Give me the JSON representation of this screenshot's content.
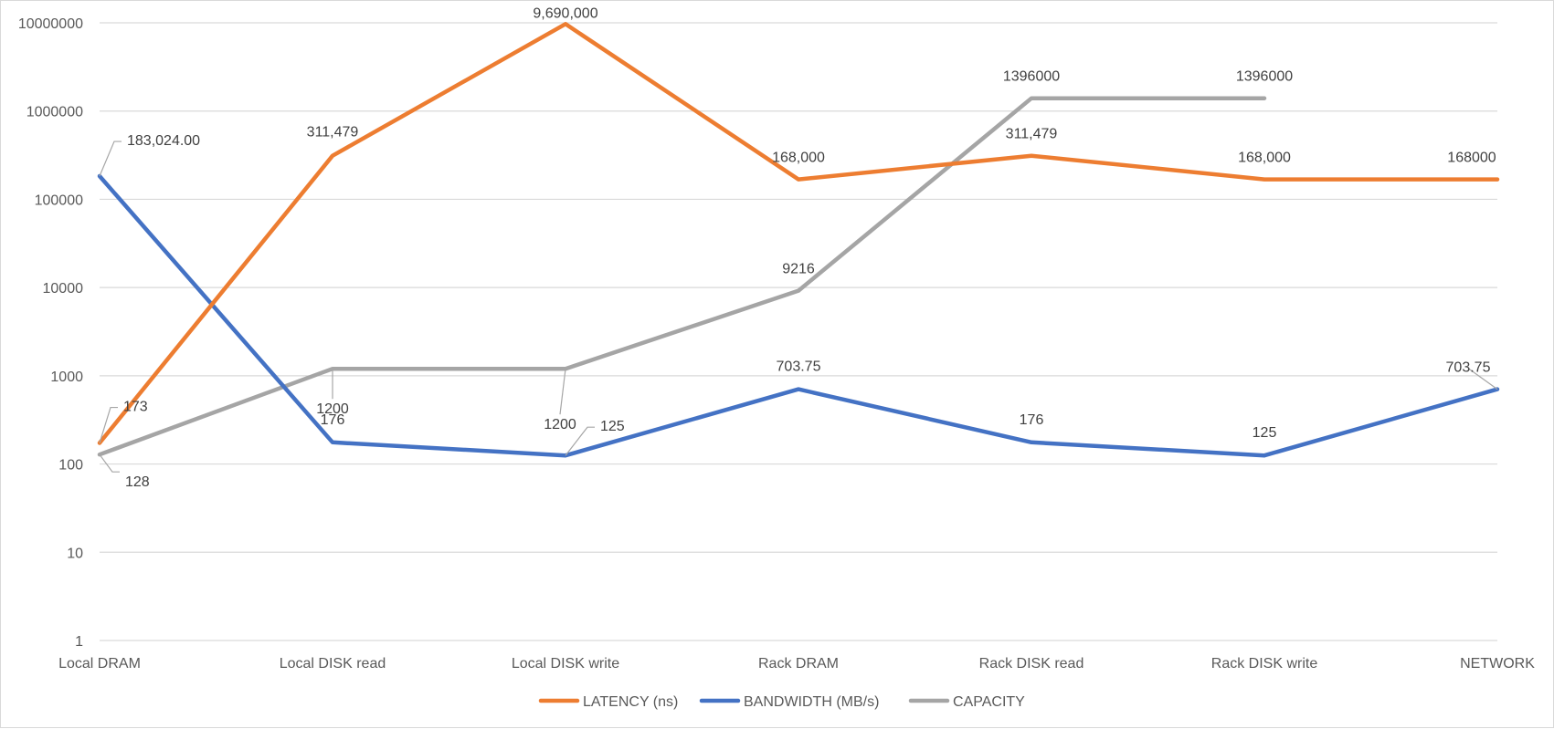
{
  "chart_data": {
    "type": "line",
    "title": "",
    "xlabel": "",
    "ylabel": "",
    "y_scale": "log",
    "ylim": [
      1,
      10000000
    ],
    "y_ticks": [
      "1",
      "10",
      "100",
      "1000",
      "10000",
      "100000",
      "1000000",
      "10000000"
    ],
    "grid": true,
    "legend_position": "bottom",
    "categories": [
      "Local DRAM",
      "Local DISK read",
      "Local DISK write",
      "Rack DRAM",
      "Rack DISK read",
      "Rack DISK write",
      "NETWORK"
    ],
    "series": [
      {
        "name": "LATENCY (ns)",
        "color": "#ED7D31",
        "values": [
          173,
          311479,
          9690000,
          168000,
          311479,
          168000,
          168000
        ],
        "labels": [
          "173",
          "311,479",
          "9,690,000",
          "168,000",
          "311,479",
          "168,000",
          "168000"
        ]
      },
      {
        "name": "BANDWIDTH (MB/s)",
        "color": "#4472C4",
        "values": [
          183024,
          176,
          125,
          703.75,
          176,
          125,
          703.75
        ],
        "labels": [
          "183,024.00",
          "176",
          "125",
          "703.75",
          "176",
          "125",
          "703.75"
        ]
      },
      {
        "name": "CAPACITY",
        "color": "#A5A5A5",
        "values": [
          128,
          1200,
          1200,
          9216,
          1396000,
          1396000,
          null
        ],
        "labels": [
          "128",
          "1200",
          "1200",
          "9216",
          "1396000",
          "1396000",
          null
        ]
      }
    ]
  }
}
